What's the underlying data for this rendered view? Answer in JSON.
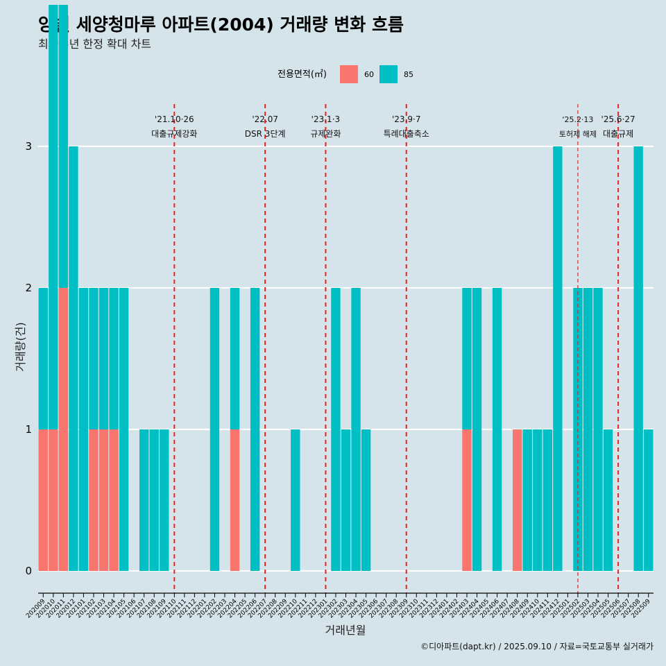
{
  "chart_data": {
    "type": "bar",
    "title": "양벌 세양청마루 아파트(2004) 거래량 변화 흐름",
    "subtitle": "최근 5년 한정 확대 차트",
    "xlabel": "거래년월",
    "ylabel": "거래량(건)",
    "caption": "©디아파트(dapt.kr) / 2025.09.10 / 자료=국토교통부 실거래가",
    "legend": {
      "title": "전용면적(㎡)",
      "position": "top",
      "entries": [
        {
          "name": "60",
          "color": "#f8766d"
        },
        {
          "name": "85",
          "color": "#00bfc4"
        }
      ]
    },
    "ylim": [
      -0.15,
      3.3
    ],
    "yticks": [
      0,
      1,
      2,
      3
    ],
    "grid": true,
    "categories": [
      "202009",
      "202010",
      "202011",
      "202012",
      "202101",
      "202102",
      "202103",
      "202104",
      "202105",
      "202106",
      "202107",
      "202108",
      "202109",
      "202110",
      "202111",
      "202112",
      "202201",
      "202202",
      "202203",
      "202204",
      "202205",
      "202206",
      "202207",
      "202208",
      "202209",
      "202210",
      "202211",
      "202212",
      "202301",
      "202302",
      "202303",
      "202304",
      "202305",
      "202306",
      "202307",
      "202308",
      "202309",
      "202310",
      "202311",
      "202312",
      "202401",
      "202402",
      "202403",
      "202404",
      "202405",
      "202406",
      "202407",
      "202408",
      "202409",
      "202410",
      "202411",
      "202412",
      "202501",
      "202502",
      "202503",
      "202504",
      "202505",
      "202506",
      "202507",
      "202508",
      "202509"
    ],
    "series": [
      {
        "name": "60",
        "color": "#f8766d",
        "values": [
          1,
          1,
          2,
          0,
          0,
          1,
          1,
          1,
          0,
          0,
          0,
          0,
          0,
          0,
          0,
          0,
          0,
          0,
          0,
          1,
          0,
          0,
          0,
          0,
          0,
          0,
          0,
          0,
          0,
          0,
          0,
          0,
          0,
          0,
          0,
          0,
          0,
          0,
          0,
          0,
          0,
          0,
          1,
          0,
          0,
          0,
          0,
          1,
          0,
          0,
          0,
          0,
          0,
          0,
          0,
          0,
          0,
          0,
          0,
          0,
          0
        ]
      },
      {
        "name": "85",
        "color": "#00bfc4",
        "values": [
          1,
          3,
          2,
          3,
          2,
          1,
          1,
          1,
          2,
          0,
          1,
          1,
          1,
          0,
          0,
          0,
          0,
          2,
          0,
          1,
          0,
          2,
          0,
          0,
          0,
          1,
          0,
          0,
          0,
          2,
          1,
          2,
          1,
          0,
          0,
          0,
          0,
          0,
          0,
          0,
          0,
          0,
          1,
          2,
          0,
          2,
          0,
          0,
          1,
          1,
          1,
          3,
          0,
          2,
          2,
          2,
          1,
          0,
          0,
          3,
          1
        ]
      }
    ],
    "annotations": [
      {
        "x": 13.5,
        "line1": "'21.10·26",
        "line2": "대출규제강화",
        "style": "dashed"
      },
      {
        "x": 22.5,
        "line1": "'22.07",
        "line2": "DSR 3단계",
        "style": "dashed"
      },
      {
        "x": 28.5,
        "line1": "'23.1·3",
        "line2": "규제완화",
        "style": "dashed"
      },
      {
        "x": 36.5,
        "line1": "'23.9·7",
        "line2": "특례대출축소",
        "style": "dashed"
      },
      {
        "x": 53.5,
        "line1": "'25.2·13",
        "line2": "토허제 해제",
        "style": "thin",
        "small": true
      },
      {
        "x": 57.5,
        "line1": "'25.6·27",
        "line2": "대출규제",
        "style": "dashed"
      }
    ]
  }
}
